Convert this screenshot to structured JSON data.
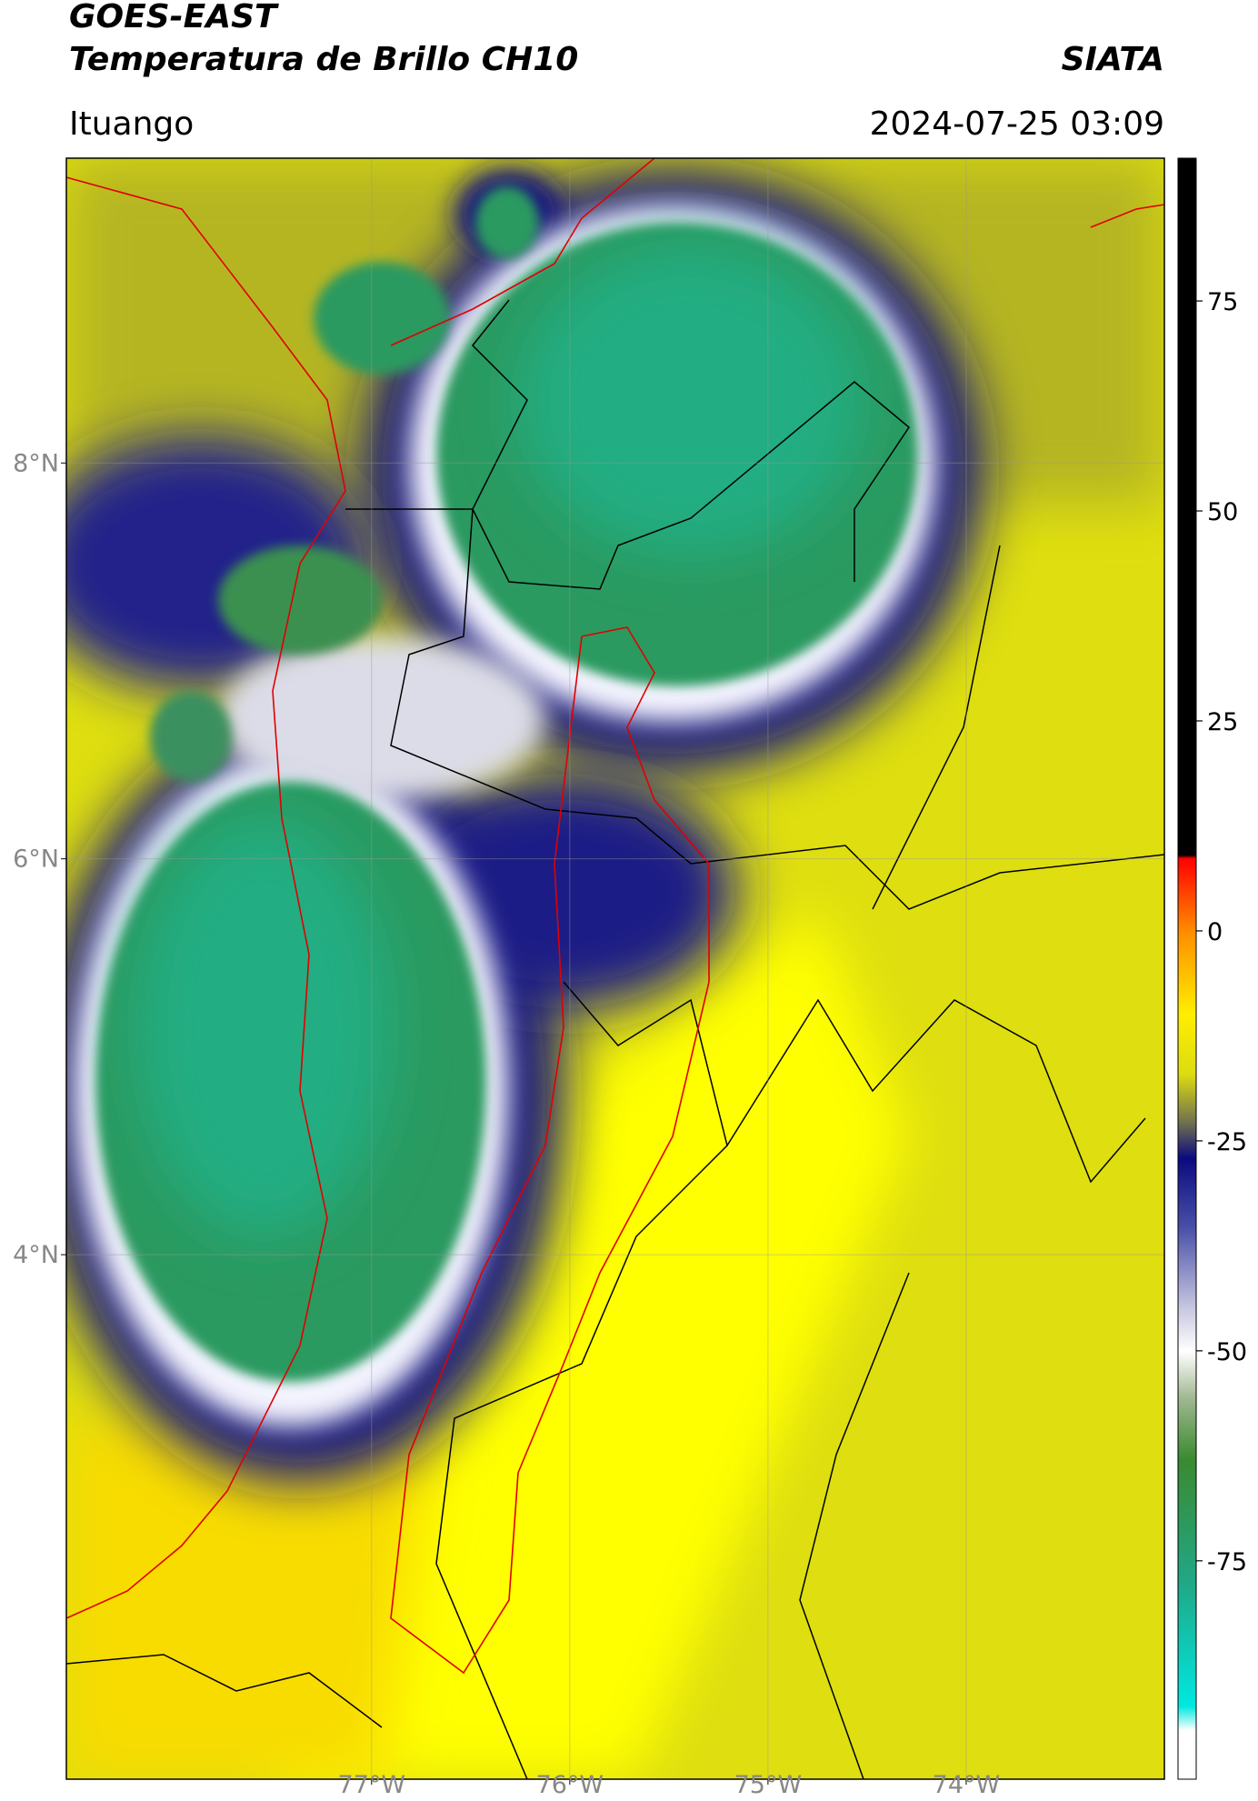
{
  "header": {
    "title": "GOES-EAST",
    "subtitle": "Temperatura de Brillo CH10",
    "agency": "SIATA",
    "location": "Ituango",
    "timestamp": "2024-07-25 03:09"
  },
  "map": {
    "xlim": [
      -78.54,
      -73.0
    ],
    "ylim": [
      1.35,
      9.54
    ],
    "xticks": [
      {
        "value": -77,
        "label": "77°W"
      },
      {
        "value": -76,
        "label": "76°W"
      },
      {
        "value": -75,
        "label": "75°W"
      },
      {
        "value": -74,
        "label": "74°W"
      }
    ],
    "yticks": [
      {
        "value": 8,
        "label": "8°N"
      },
      {
        "value": 6,
        "label": "6°N"
      },
      {
        "value": 4,
        "label": "4°N"
      }
    ]
  },
  "colorbar": {
    "clim": [
      -101,
      92
    ],
    "ticks": [
      75,
      50,
      25,
      0,
      -25,
      -50,
      -75
    ]
  }
}
